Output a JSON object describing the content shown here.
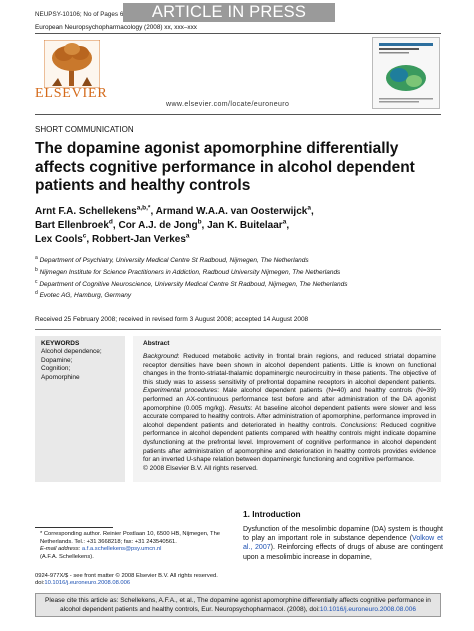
{
  "header": {
    "banner": "ARTICLE IN PRESS",
    "manuscript_id": "NEUPSY-10106; No of Pages 6",
    "journal_line": "European Neuropsychopharmacology (2008) xx, xxx–xxx",
    "publisher_logo_text": "ELSEVIER",
    "url": "www.elsevier.com/locate/euroneuro"
  },
  "article": {
    "section": "SHORT COMMUNICATION",
    "title": "The dopamine agonist apomorphine differentially affects cognitive performance in alcohol dependent patients and healthy controls",
    "authors": [
      {
        "name": "Arnt F.A. Schellekens",
        "sup": "a,b,",
        "star": "*",
        "sep": ", "
      },
      {
        "name": "Armand W.A.A. van Oosterwijck",
        "sup": "a",
        "star": "",
        "sep": ","
      },
      {
        "name": "Bart Ellenbroek",
        "sup": "d",
        "star": "",
        "sep": ", "
      },
      {
        "name": "Cor A.J. de Jong",
        "sup": "b",
        "star": "",
        "sep": ", "
      },
      {
        "name": "Jan K. Buitelaar",
        "sup": "a",
        "star": "",
        "sep": ","
      },
      {
        "name": "Lex Cools",
        "sup": "c",
        "star": "",
        "sep": ", "
      },
      {
        "name": "Robbert-Jan Verkes",
        "sup": "a",
        "star": "",
        "sep": ""
      }
    ],
    "affiliations": [
      {
        "sup": "a",
        "text": "Department of Psychiatry, University Medical Centre St Radboud, Nijmegen, The Netherlands"
      },
      {
        "sup": "b",
        "text": "Nijmegen Institute for Science Practitioners in Addiction, Radboud University Nijmegen, The Netherlands"
      },
      {
        "sup": "c",
        "text": "Department of Cognitive Neuroscience, University Medical Centre St Radboud, Nijmegen, The Netherlands"
      },
      {
        "sup": "d",
        "text": "Evotec AG, Hamburg, Germany"
      }
    ],
    "received": "Received 25 February 2008; received in revised form 3 August 2008; accepted 14 August 2008"
  },
  "keywords": {
    "heading": "KEYWORDS",
    "items": [
      "Alcohol dependence;",
      "Dopamine;",
      "Cognition;",
      "Apomorphine"
    ]
  },
  "abstract": {
    "heading": "Abstract",
    "background_label": "Background",
    "background": ": Reduced metabolic activity in frontal brain regions, and reduced striatal dopamine receptor densities have been shown in alcohol dependent patients. Little is known on functional changes in the fronto-striatal-thalamic dopaminergic neurocircuitry in these patients. The objective of this study was to assess sensitivity of prefrontal dopamine receptors in alcohol dependent patients. ",
    "procedures_label": "Experimental procedures",
    "procedures": ": Male alcohol dependent patients (N=40) and healthy controls (N=39) performed an AX-continuous performance test before and after administration of the DA agonist apomorphine (0.005 mg/kg). ",
    "results_label": "Results",
    "results": ": At baseline alcohol dependent patients were slower and less accurate compared to healthy controls. After administration of apomorphine, performance improved in alcohol dependent patients and deteriorated in healthy controls. ",
    "conclusions_label": "Conclusions",
    "conclusions": ": Reduced cognitive performance in alcohol dependent patients compared with healthy controls might indicate dopamine dysfunctioning at the prefrontal level. Improvement of cognitive performance in alcohol dependent patients after administration of apomorphine and deterioration in healthy controls provides evidence for an inverted U-shape relation between dopaminergic functioning and cognitive performance.",
    "copyright": "© 2008 Elsevier B.V. All rights reserved."
  },
  "introduction": {
    "heading": "1. Introduction",
    "text_a": "Dysfunction of the mesolimbic dopamine (DA) system is thought to play an important role in substance dependence (",
    "link": "Volkow et al., 2007",
    "text_b": "). Reinforcing effects of drugs of abuse are contingent upon a mesolimbic increase in dopamine,"
  },
  "footnote": {
    "corresponding": "* Corresponding author. Reinier Postlaan 10, 6500 HB, Nijmegen, The Netherlands. Tel.: +31 3668218; fax: +31 243540561.",
    "email_label": "E-mail address:",
    "email": "a.f.a.schellekens@psy.umcn.nl",
    "email_name": "(A.F.A. Schellekens)."
  },
  "front_matter": {
    "issn": "0924-977X/$ - see front matter © 2008 Elsevier B.V. All rights reserved.",
    "doi_label": "doi:",
    "doi": "10.1016/j.euroneuro.2008.08.006"
  },
  "citation": {
    "text": "Please cite this article as: Schellekens, A.F.A., et al., The dopamine agonist apomorphine differentially affects cognitive performance in alcohol dependent patients and healthy controls, Eur. Neuropsychopharmacol. (2008), doi:",
    "doi": "10.1016/j.euroneuro.2008.08.006"
  },
  "colors": {
    "banner_bg": "#9a9a9a",
    "elsevier_orange": "#d46a1a",
    "link_blue": "#1a4fb2",
    "keyword_box": "#e9e9e9",
    "citation_box": "#e4e4e4"
  },
  "icons": {
    "publisher_logo": "elsevier-tree-logo",
    "journal_cover": "journal-cover-thumbnail"
  }
}
